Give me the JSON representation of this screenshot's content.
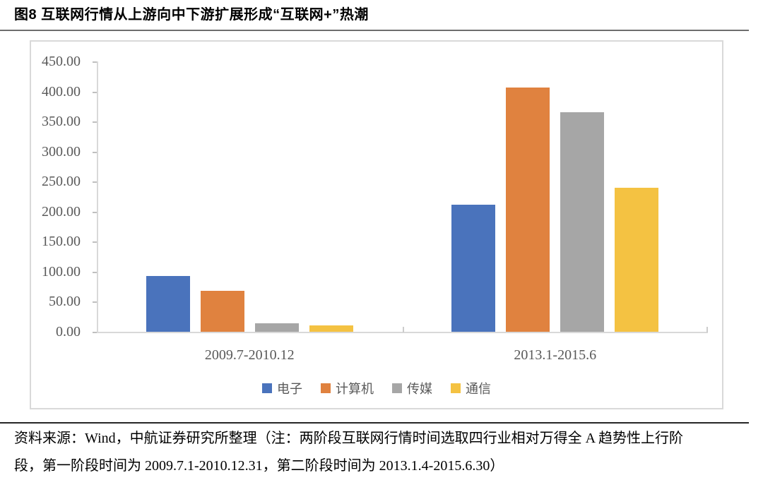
{
  "page": {
    "figure_title": "图8  互联网行情从上游向中下游扩展形成“互联网+”热潮"
  },
  "chart_data": {
    "type": "bar",
    "title": "图8 互联网行情从上游向中下游扩展形成“互联网+”热潮",
    "categories": [
      "2009.7-2010.12",
      "2013.1-2015.6"
    ],
    "series": [
      {
        "name": "电子",
        "color": "#4a73bc",
        "values": [
          93,
          211
        ]
      },
      {
        "name": "计算机",
        "color": "#e0823f",
        "values": [
          68,
          407
        ]
      },
      {
        "name": "传媒",
        "color": "#a6a6a6",
        "values": [
          14,
          365
        ]
      },
      {
        "name": "通信",
        "color": "#f4c242",
        "values": [
          11,
          240
        ]
      }
    ],
    "ylim": [
      0,
      450
    ],
    "ytick_labels": [
      "450.00",
      "400.00",
      "350.00",
      "300.00",
      "250.00",
      "200.00",
      "150.00",
      "100.00",
      "50.00",
      "0.00"
    ],
    "xlabel": "",
    "ylabel": "",
    "grid": false,
    "legend_position": "bottom"
  },
  "source_note": {
    "line1": "资料来源：Wind，中航证券研究所整理（注：两阶段互联网行情时间选取四行业相对万得全 A 趋势性上行阶",
    "line2": "段，第一阶段时间为 2009.7.1-2010.12.31，第二阶段时间为 2013.1.4-2015.6.30）"
  }
}
